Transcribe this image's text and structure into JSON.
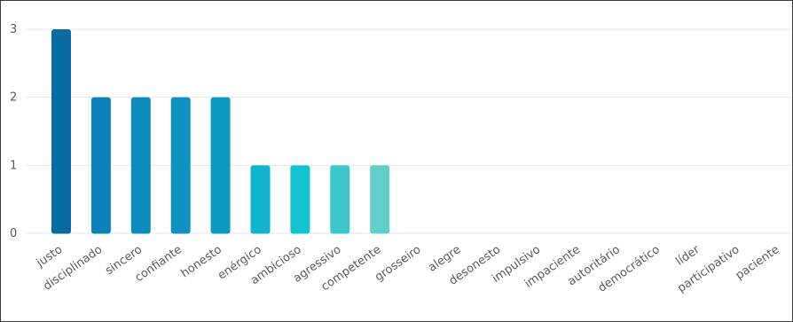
{
  "chart_data": {
    "type": "bar",
    "categories": [
      "justo",
      "disciplinado",
      "sincero",
      "confiante",
      "honesto",
      "enérgico",
      "ambicioso",
      "agressivo",
      "competente",
      "grosseiro",
      "alegre",
      "desonesto",
      "impulsivo",
      "impaciente",
      "autoritário",
      "democrático",
      "líder",
      "participativo",
      "paciente"
    ],
    "values": [
      3,
      2,
      2,
      2,
      2,
      1,
      1,
      1,
      1,
      0,
      0,
      0,
      0,
      0,
      0,
      0,
      0,
      0,
      0
    ],
    "ylim": [
      0,
      3
    ],
    "yticks": [
      0,
      1,
      2,
      3
    ],
    "grid": true,
    "colors": [
      "#0a6aa3",
      "#0c82b8",
      "#0d8bbd",
      "#0d92c1",
      "#0e99c4",
      "#10b4cf",
      "#12c3d0",
      "#3dc6cc",
      "#62cfca",
      "#7dd6cc",
      "#7dd6cc",
      "#7dd6cc",
      "#7dd6cc",
      "#7dd6cc",
      "#7dd6cc",
      "#7dd6cc",
      "#7dd6cc",
      "#7dd6cc",
      "#7dd6cc"
    ]
  }
}
